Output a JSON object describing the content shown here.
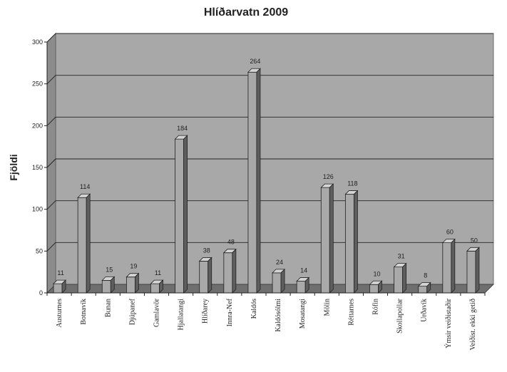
{
  "chart_data": {
    "type": "bar",
    "title": "Hlíðarvatn 2009",
    "xlabel": "",
    "ylabel": "Fjöldi",
    "ylim": [
      0,
      300
    ],
    "yticks": [
      0,
      50,
      100,
      150,
      200,
      250,
      300
    ],
    "grid": true,
    "three_d": true,
    "categories": [
      "Austurnes",
      "Botnavík",
      "Bunan",
      "Djúpanef",
      "Gamlavör",
      "Hjallatangi",
      "Hlíðarey",
      "Innra-Nef",
      "Kaldós",
      "Kaldósólmi",
      "Mosatangi",
      "Mölin",
      "Réttarnes",
      "Rófin",
      "Skollapollar",
      "Urðavík",
      "Ýmsir veiðistaðir",
      "Veiðist. ekki getið"
    ],
    "values": [
      11,
      114,
      15,
      19,
      11,
      184,
      38,
      48,
      264,
      24,
      14,
      126,
      118,
      10,
      31,
      8,
      60,
      50
    ],
    "value_labels": [
      "11",
      "114",
      "15",
      "19",
      "11",
      "184",
      "38",
      "48",
      "264",
      "24",
      "14",
      "126",
      "118",
      "10",
      "31",
      "8",
      "60",
      "50"
    ]
  },
  "colors": {
    "plot_background": "#a8a8a8",
    "wall_side": "#8c8c8c",
    "floor": "#6f6f6f",
    "bar_front": "#a9a9a9",
    "bar_top": "#d4d4d4",
    "bar_side": "#5e5e5e",
    "grid_line": "#222222"
  }
}
